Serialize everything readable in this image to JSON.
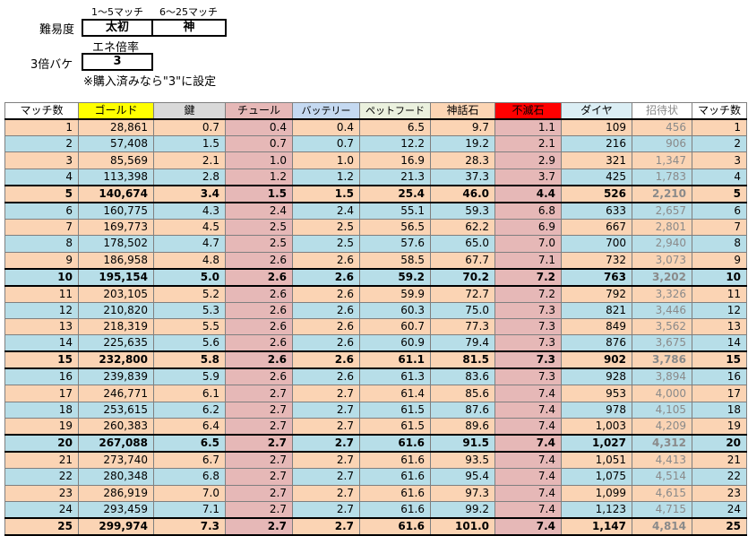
{
  "settings": {
    "range1_label": "1～5マッチ",
    "range2_label": "6～25マッチ",
    "difficulty_label": "難易度",
    "difficulty_value1": "太初",
    "difficulty_value2": "神",
    "energy_rate_label": "エネ倍率",
    "bake_label": "3倍バケ",
    "bake_value": "3",
    "note": "※購入済みなら\"3\"に設定"
  },
  "colors": {
    "orange": "#fbd4b4",
    "blue": "#b7dee8",
    "red": "#e6b8b7",
    "gold_header": "#ffff00",
    "key_header": "#d9d9d9",
    "chul_header": "#e6b8b7",
    "battery_header": "#c5d9f1",
    "petfood_header": "#ebf1de",
    "shinwa_header": "#fcd5b4",
    "fumetsu_header": "#ff0000",
    "diamond_header": "#dbeef4"
  },
  "table": {
    "headers": [
      "マッチ数",
      "ゴールド",
      "鍵",
      "チュール",
      "バッテリー",
      "ペットフード",
      "神話石",
      "不滅石",
      "ダイヤ",
      "招待状",
      "マッチ数"
    ],
    "rows": [
      [
        "1",
        "28,861",
        "0.7",
        "0.4",
        "0.4",
        "6.5",
        "9.7",
        "1.1",
        "109",
        "456",
        "1"
      ],
      [
        "2",
        "57,408",
        "1.5",
        "0.7",
        "0.7",
        "12.2",
        "19.2",
        "2.1",
        "216",
        "906",
        "2"
      ],
      [
        "3",
        "85,569",
        "2.1",
        "1.0",
        "1.0",
        "16.9",
        "28.3",
        "2.9",
        "321",
        "1,347",
        "3"
      ],
      [
        "4",
        "113,398",
        "2.8",
        "1.2",
        "1.2",
        "21.3",
        "37.3",
        "3.7",
        "425",
        "1,783",
        "4"
      ],
      [
        "5",
        "140,674",
        "3.4",
        "1.5",
        "1.5",
        "25.4",
        "46.0",
        "4.4",
        "526",
        "2,210",
        "5"
      ],
      [
        "6",
        "160,775",
        "4.3",
        "2.4",
        "2.4",
        "55.1",
        "59.3",
        "6.8",
        "633",
        "2,657",
        "6"
      ],
      [
        "7",
        "169,773",
        "4.5",
        "2.5",
        "2.5",
        "56.5",
        "62.2",
        "6.9",
        "667",
        "2,801",
        "7"
      ],
      [
        "8",
        "178,502",
        "4.7",
        "2.5",
        "2.5",
        "57.6",
        "65.0",
        "7.0",
        "700",
        "2,940",
        "8"
      ],
      [
        "9",
        "186,958",
        "4.8",
        "2.6",
        "2.6",
        "58.5",
        "67.7",
        "7.1",
        "732",
        "3,073",
        "9"
      ],
      [
        "10",
        "195,154",
        "5.0",
        "2.6",
        "2.6",
        "59.2",
        "70.2",
        "7.2",
        "763",
        "3,202",
        "10"
      ],
      [
        "11",
        "203,105",
        "5.2",
        "2.6",
        "2.6",
        "59.9",
        "72.7",
        "7.2",
        "792",
        "3,326",
        "11"
      ],
      [
        "12",
        "210,820",
        "5.3",
        "2.6",
        "2.6",
        "60.3",
        "75.0",
        "7.3",
        "821",
        "3,446",
        "12"
      ],
      [
        "13",
        "218,319",
        "5.5",
        "2.6",
        "2.6",
        "60.7",
        "77.3",
        "7.3",
        "849",
        "3,562",
        "13"
      ],
      [
        "14",
        "225,635",
        "5.6",
        "2.6",
        "2.6",
        "60.9",
        "79.4",
        "7.3",
        "876",
        "3,675",
        "14"
      ],
      [
        "15",
        "232,800",
        "5.8",
        "2.6",
        "2.6",
        "61.1",
        "81.5",
        "7.3",
        "902",
        "3,786",
        "15"
      ],
      [
        "16",
        "239,839",
        "5.9",
        "2.6",
        "2.6",
        "61.3",
        "83.6",
        "7.3",
        "928",
        "3,894",
        "16"
      ],
      [
        "17",
        "246,771",
        "6.1",
        "2.7",
        "2.7",
        "61.4",
        "85.6",
        "7.4",
        "953",
        "4,000",
        "17"
      ],
      [
        "18",
        "253,615",
        "6.2",
        "2.7",
        "2.7",
        "61.5",
        "87.6",
        "7.4",
        "978",
        "4,105",
        "18"
      ],
      [
        "19",
        "260,383",
        "6.4",
        "2.7",
        "2.7",
        "61.5",
        "89.6",
        "7.4",
        "1,003",
        "4,209",
        "19"
      ],
      [
        "20",
        "267,088",
        "6.5",
        "2.7",
        "2.7",
        "61.6",
        "91.5",
        "7.4",
        "1,027",
        "4,312",
        "20"
      ],
      [
        "21",
        "273,740",
        "6.7",
        "2.7",
        "2.7",
        "61.6",
        "93.5",
        "7.4",
        "1,051",
        "4,413",
        "21"
      ],
      [
        "22",
        "280,348",
        "6.8",
        "2.7",
        "2.7",
        "61.6",
        "95.4",
        "7.4",
        "1,075",
        "4,514",
        "22"
      ],
      [
        "23",
        "286,919",
        "7.0",
        "2.7",
        "2.7",
        "61.6",
        "97.3",
        "7.4",
        "1,099",
        "4,615",
        "23"
      ],
      [
        "24",
        "293,459",
        "7.1",
        "2.7",
        "2.7",
        "61.6",
        "99.2",
        "7.4",
        "1,123",
        "4,715",
        "24"
      ],
      [
        "25",
        "299,974",
        "7.3",
        "2.7",
        "2.7",
        "61.6",
        "101.0",
        "7.4",
        "1,147",
        "4,814",
        "25"
      ]
    ],
    "bold_rows": [
      5,
      10,
      15,
      20,
      25
    ]
  }
}
